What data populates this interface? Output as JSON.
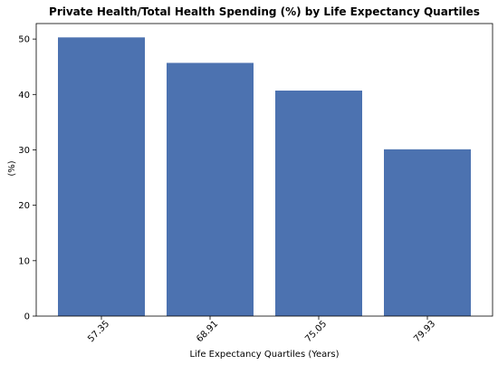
{
  "chart_data": {
    "type": "bar",
    "title": "Private Health/Total Health Spending (%) by Life Expectancy Quartiles",
    "xlabel": "Life Expectancy Quartiles (Years)",
    "ylabel": "(%)",
    "categories": [
      "57.35",
      "68.91",
      "75.05",
      "79.93"
    ],
    "values": [
      50.3,
      45.7,
      40.7,
      30.1
    ],
    "ylim": [
      0,
      52.8
    ],
    "yticks": [
      0,
      10,
      20,
      30,
      40,
      50
    ],
    "bar_color": "#4c72b0",
    "grid": false,
    "legend": "none"
  }
}
